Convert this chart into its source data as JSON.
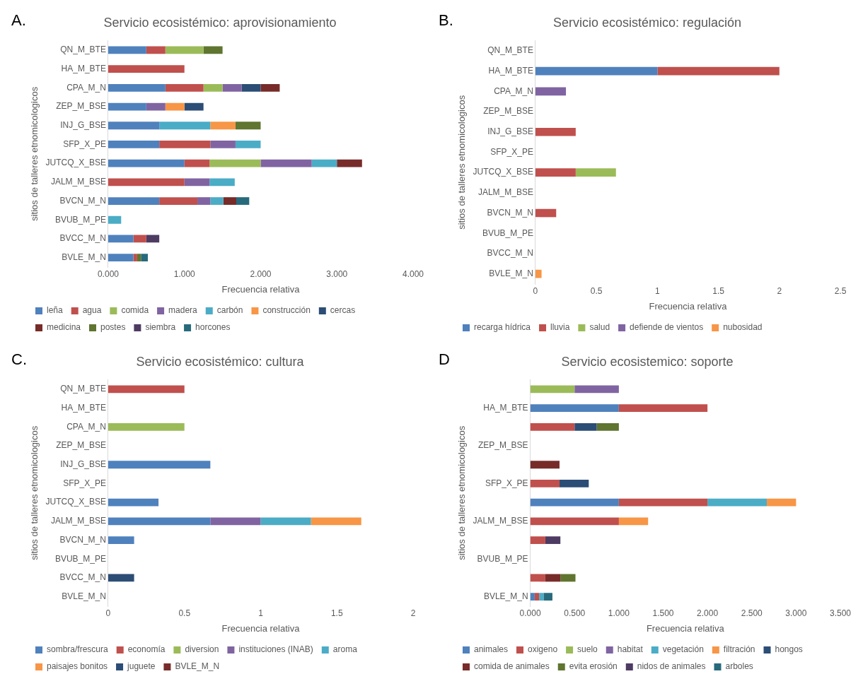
{
  "chart_data": [
    {
      "type": "bar",
      "orientation": "horizontal",
      "stacked": true,
      "title": "Servicio ecosistémico: aprovisionamiento",
      "xlabel": "Frecuencia relativa",
      "ylabel": "sitios de talleres etnomicologicos",
      "annotations": [
        "A."
      ],
      "legend": "bottom",
      "grid": false,
      "categories": [
        "QN_M_BTE",
        "HA_M_BTE",
        "CPA_M_N",
        "ZEP_M_BSE",
        "INJ_G_BSE",
        "SFP_X_PE",
        "JUTCQ_X_BSE",
        "JALM_M_BSE",
        "BVCN_M_N",
        "BVUB_M_PE",
        "BVCC_M_N",
        "BVLE_M_N"
      ],
      "xlim": [
        0,
        4
      ],
      "xticks": [
        {
          "value": 0,
          "label": "0.000"
        },
        {
          "value": 1,
          "label": "1.000"
        },
        {
          "value": 2,
          "label": "2.000"
        },
        {
          "value": 3,
          "label": "3.000"
        },
        {
          "value": 4,
          "label": "4.000"
        }
      ],
      "series": [
        {
          "name": "leña",
          "color": "#4f81bd",
          "values": [
            0.5,
            null,
            0.75,
            0.5,
            0.67,
            0.67,
            1,
            null,
            0.67,
            null,
            0.33,
            0.33
          ]
        },
        {
          "name": "agua",
          "color": "#c0504d",
          "values": [
            0.25,
            1,
            0.5,
            null,
            null,
            0.67,
            0.33,
            1,
            0.5,
            null,
            0.17,
            0.05
          ]
        },
        {
          "name": "comida",
          "color": "#9bbb59",
          "values": [
            0.5,
            null,
            0.25,
            null,
            null,
            null,
            0.67,
            null,
            null,
            null,
            null,
            null
          ]
        },
        {
          "name": "madera",
          "color": "#8064a2",
          "values": [
            null,
            null,
            0.25,
            0.25,
            null,
            0.33,
            0.67,
            0.33,
            0.17,
            null,
            null,
            null
          ]
        },
        {
          "name": "carbón",
          "color": "#4bacc6",
          "values": [
            null,
            null,
            null,
            null,
            0.67,
            0.33,
            0.33,
            0.33,
            0.17,
            0.17,
            null,
            null
          ]
        },
        {
          "name": "construcción",
          "color": "#f79646",
          "values": [
            null,
            null,
            null,
            0.25,
            0.33,
            null,
            null,
            null,
            null,
            null,
            null,
            null
          ]
        },
        {
          "name": "cercas",
          "color": "#2c4d75",
          "values": [
            null,
            null,
            0.25,
            0.25,
            null,
            null,
            null,
            null,
            null,
            null,
            null,
            null
          ]
        },
        {
          "name": "medicina",
          "color": "#772c2a",
          "values": [
            null,
            null,
            0.25,
            null,
            null,
            null,
            0.33,
            null,
            0.17,
            null,
            null,
            null
          ]
        },
        {
          "name": "postes",
          "color": "#5f7530",
          "values": [
            0.25,
            null,
            null,
            null,
            0.33,
            null,
            null,
            null,
            null,
            null,
            null,
            0.05
          ]
        },
        {
          "name": "siembra",
          "color": "#4d3b62",
          "values": [
            null,
            null,
            null,
            null,
            null,
            null,
            null,
            null,
            null,
            null,
            0.17,
            null
          ]
        },
        {
          "name": "horcones",
          "color": "#276a7c",
          "values": [
            null,
            null,
            null,
            null,
            null,
            null,
            null,
            null,
            0.17,
            null,
            null,
            0.09
          ]
        }
      ]
    },
    {
      "type": "bar",
      "orientation": "horizontal",
      "stacked": true,
      "title": "Servicio ecosistémico: regulación",
      "xlabel": "Frecuencia relativa",
      "ylabel": "sitios de talleres etnomicologicos",
      "annotations": [
        "B."
      ],
      "legend": "bottom",
      "grid": false,
      "categories": [
        "QN_M_BTE",
        "HA_M_BTE",
        "CPA_M_N",
        "ZEP_M_BSE",
        "INJ_G_BSE",
        "SFP_X_PE",
        "JUTCQ_X_BSE",
        "JALM_M_BSE",
        "BVCN_M_N",
        "BVUB_M_PE",
        "BVCC_M_N",
        "BVLE_M_N"
      ],
      "xlim": [
        0,
        2.5
      ],
      "xticks": [
        0,
        0.5,
        1,
        1.5,
        2,
        2.5
      ],
      "series": [
        {
          "name": "recarga hídrica",
          "color": "#4f81bd",
          "values": [
            null,
            1,
            null,
            null,
            null,
            null,
            null,
            null,
            null,
            null,
            null,
            null
          ]
        },
        {
          "name": "lluvia",
          "color": "#c0504d",
          "values": [
            null,
            1,
            null,
            null,
            0.33,
            null,
            0.33,
            null,
            0.17,
            null,
            null,
            null
          ]
        },
        {
          "name": "salud",
          "color": "#9bbb59",
          "values": [
            null,
            null,
            null,
            null,
            null,
            null,
            0.33,
            null,
            null,
            null,
            null,
            null
          ]
        },
        {
          "name": "defiende de vientos",
          "color": "#8064a2",
          "values": [
            null,
            null,
            0.25,
            null,
            null,
            null,
            null,
            null,
            null,
            null,
            null,
            null
          ]
        },
        {
          "name": "nubosidad",
          "color": "#f79646",
          "values": [
            null,
            null,
            null,
            null,
            null,
            null,
            null,
            null,
            null,
            null,
            null,
            0.05
          ]
        }
      ]
    },
    {
      "type": "bar",
      "orientation": "horizontal",
      "stacked": true,
      "title": "Servicio ecosistémico: cultura",
      "xlabel": "Frecuencia relativa",
      "ylabel": "sitios de talleres etnomicologicos",
      "annotations": [
        "C."
      ],
      "legend": "bottom",
      "grid": false,
      "categories": [
        "QN_M_BTE",
        "HA_M_BTE",
        "CPA_M_N",
        "ZEP_M_BSE",
        "INJ_G_BSE",
        "SFP_X_PE",
        "JUTCQ_X_BSE",
        "JALM_M_BSE",
        "BVCN_M_N",
        "BVUB_M_PE",
        "BVCC_M_N",
        "BVLE_M_N"
      ],
      "xlim": [
        0,
        2
      ],
      "xticks": [
        0,
        0.5,
        1,
        1.5,
        2
      ],
      "series": [
        {
          "name": "sombra/frescura",
          "color": "#4f81bd",
          "values": [
            null,
            null,
            null,
            null,
            0.67,
            null,
            0.33,
            0.67,
            0.17,
            null,
            null,
            null
          ]
        },
        {
          "name": "economía",
          "color": "#c0504d",
          "values": [
            0.5,
            null,
            null,
            null,
            null,
            null,
            null,
            null,
            null,
            null,
            null,
            null
          ]
        },
        {
          "name": "diversion",
          "color": "#9bbb59",
          "values": [
            null,
            null,
            0.5,
            null,
            null,
            null,
            null,
            null,
            null,
            null,
            null,
            null
          ]
        },
        {
          "name": "instituciones (INAB)",
          "color": "#8064a2",
          "values": [
            null,
            null,
            null,
            null,
            null,
            null,
            null,
            0.33,
            null,
            null,
            null,
            null
          ]
        },
        {
          "name": "aroma",
          "color": "#4bacc6",
          "values": [
            null,
            null,
            null,
            null,
            null,
            null,
            null,
            0.33,
            null,
            null,
            null,
            null
          ]
        },
        {
          "name": "paisajes bonitos",
          "color": "#f79646",
          "values": [
            null,
            null,
            null,
            null,
            null,
            null,
            null,
            0.33,
            null,
            null,
            null,
            null
          ]
        },
        {
          "name": "juguete",
          "color": "#2c4d75",
          "values": [
            null,
            null,
            null,
            null,
            null,
            null,
            null,
            null,
            null,
            null,
            0.17,
            null
          ]
        },
        {
          "name": "BVLE_M_N",
          "color": "#772c2a",
          "values": [
            null,
            null,
            null,
            null,
            null,
            null,
            null,
            null,
            null,
            null,
            null,
            null
          ]
        }
      ]
    },
    {
      "type": "bar",
      "orientation": "horizontal",
      "stacked": true,
      "title": "Servicio ecosistemico: soporte",
      "xlabel": "Frecuencia relativa",
      "ylabel": "sitios de talleres etnomicologicos",
      "annotations": [
        "D"
      ],
      "legend": "bottom",
      "grid": false,
      "categories": [
        null,
        "HA_M_BTE",
        null,
        "ZEP_M_BSE",
        null,
        "SFP_X_PE",
        null,
        "JALM_M_BSE",
        null,
        "BVUB_M_PE",
        null,
        "BVLE_M_N"
      ],
      "xlim": [
        0,
        3.5
      ],
      "xticks": [
        {
          "value": 0,
          "label": "0.000"
        },
        {
          "value": 0.5,
          "label": "0.500"
        },
        {
          "value": 1,
          "label": "1.000"
        },
        {
          "value": 1.5,
          "label": "1.500"
        },
        {
          "value": 2,
          "label": "2.000"
        },
        {
          "value": 2.5,
          "label": "2.500"
        },
        {
          "value": 3,
          "label": "3.000"
        },
        {
          "value": 3.5,
          "label": "3.500"
        }
      ],
      "series": [
        {
          "name": "animales",
          "color": "#4f81bd",
          "values": [
            null,
            1,
            null,
            null,
            null,
            null,
            1,
            null,
            null,
            null,
            null,
            0.05
          ]
        },
        {
          "name": "oxigeno",
          "color": "#c0504d",
          "values": [
            null,
            1,
            0.5,
            null,
            null,
            0.33,
            1,
            1,
            0.17,
            null,
            0.17,
            0.05
          ]
        },
        {
          "name": "suelo",
          "color": "#9bbb59",
          "values": [
            0.5,
            null,
            null,
            null,
            null,
            null,
            null,
            null,
            null,
            null,
            null,
            null
          ]
        },
        {
          "name": "habitat",
          "color": "#8064a2",
          "values": [
            0.5,
            null,
            null,
            null,
            null,
            null,
            null,
            null,
            null,
            null,
            null,
            null
          ]
        },
        {
          "name": "vegetación",
          "color": "#4bacc6",
          "values": [
            null,
            null,
            null,
            null,
            null,
            null,
            0.67,
            null,
            null,
            null,
            null,
            0.05
          ]
        },
        {
          "name": "filtración",
          "color": "#f79646",
          "values": [
            null,
            null,
            null,
            null,
            null,
            null,
            0.33,
            0.33,
            null,
            null,
            null,
            null
          ]
        },
        {
          "name": "hongos",
          "color": "#2c4d75",
          "values": [
            null,
            null,
            0.25,
            null,
            null,
            0.33,
            null,
            null,
            null,
            null,
            null,
            null
          ]
        },
        {
          "name": "comida de animales",
          "color": "#772c2a",
          "values": [
            null,
            null,
            null,
            null,
            0.33,
            null,
            null,
            null,
            null,
            null,
            0.17,
            null
          ]
        },
        {
          "name": "evita erosión",
          "color": "#5f7530",
          "values": [
            null,
            null,
            0.25,
            null,
            null,
            null,
            null,
            null,
            null,
            null,
            0.17,
            null
          ]
        },
        {
          "name": "nidos de animales",
          "color": "#4d3b62",
          "values": [
            null,
            null,
            null,
            null,
            null,
            null,
            null,
            null,
            0.17,
            null,
            null,
            null
          ]
        },
        {
          "name": "arboles",
          "color": "#276a7c",
          "values": [
            null,
            null,
            null,
            null,
            null,
            null,
            null,
            null,
            null,
            null,
            null,
            0.1
          ]
        }
      ]
    }
  ]
}
